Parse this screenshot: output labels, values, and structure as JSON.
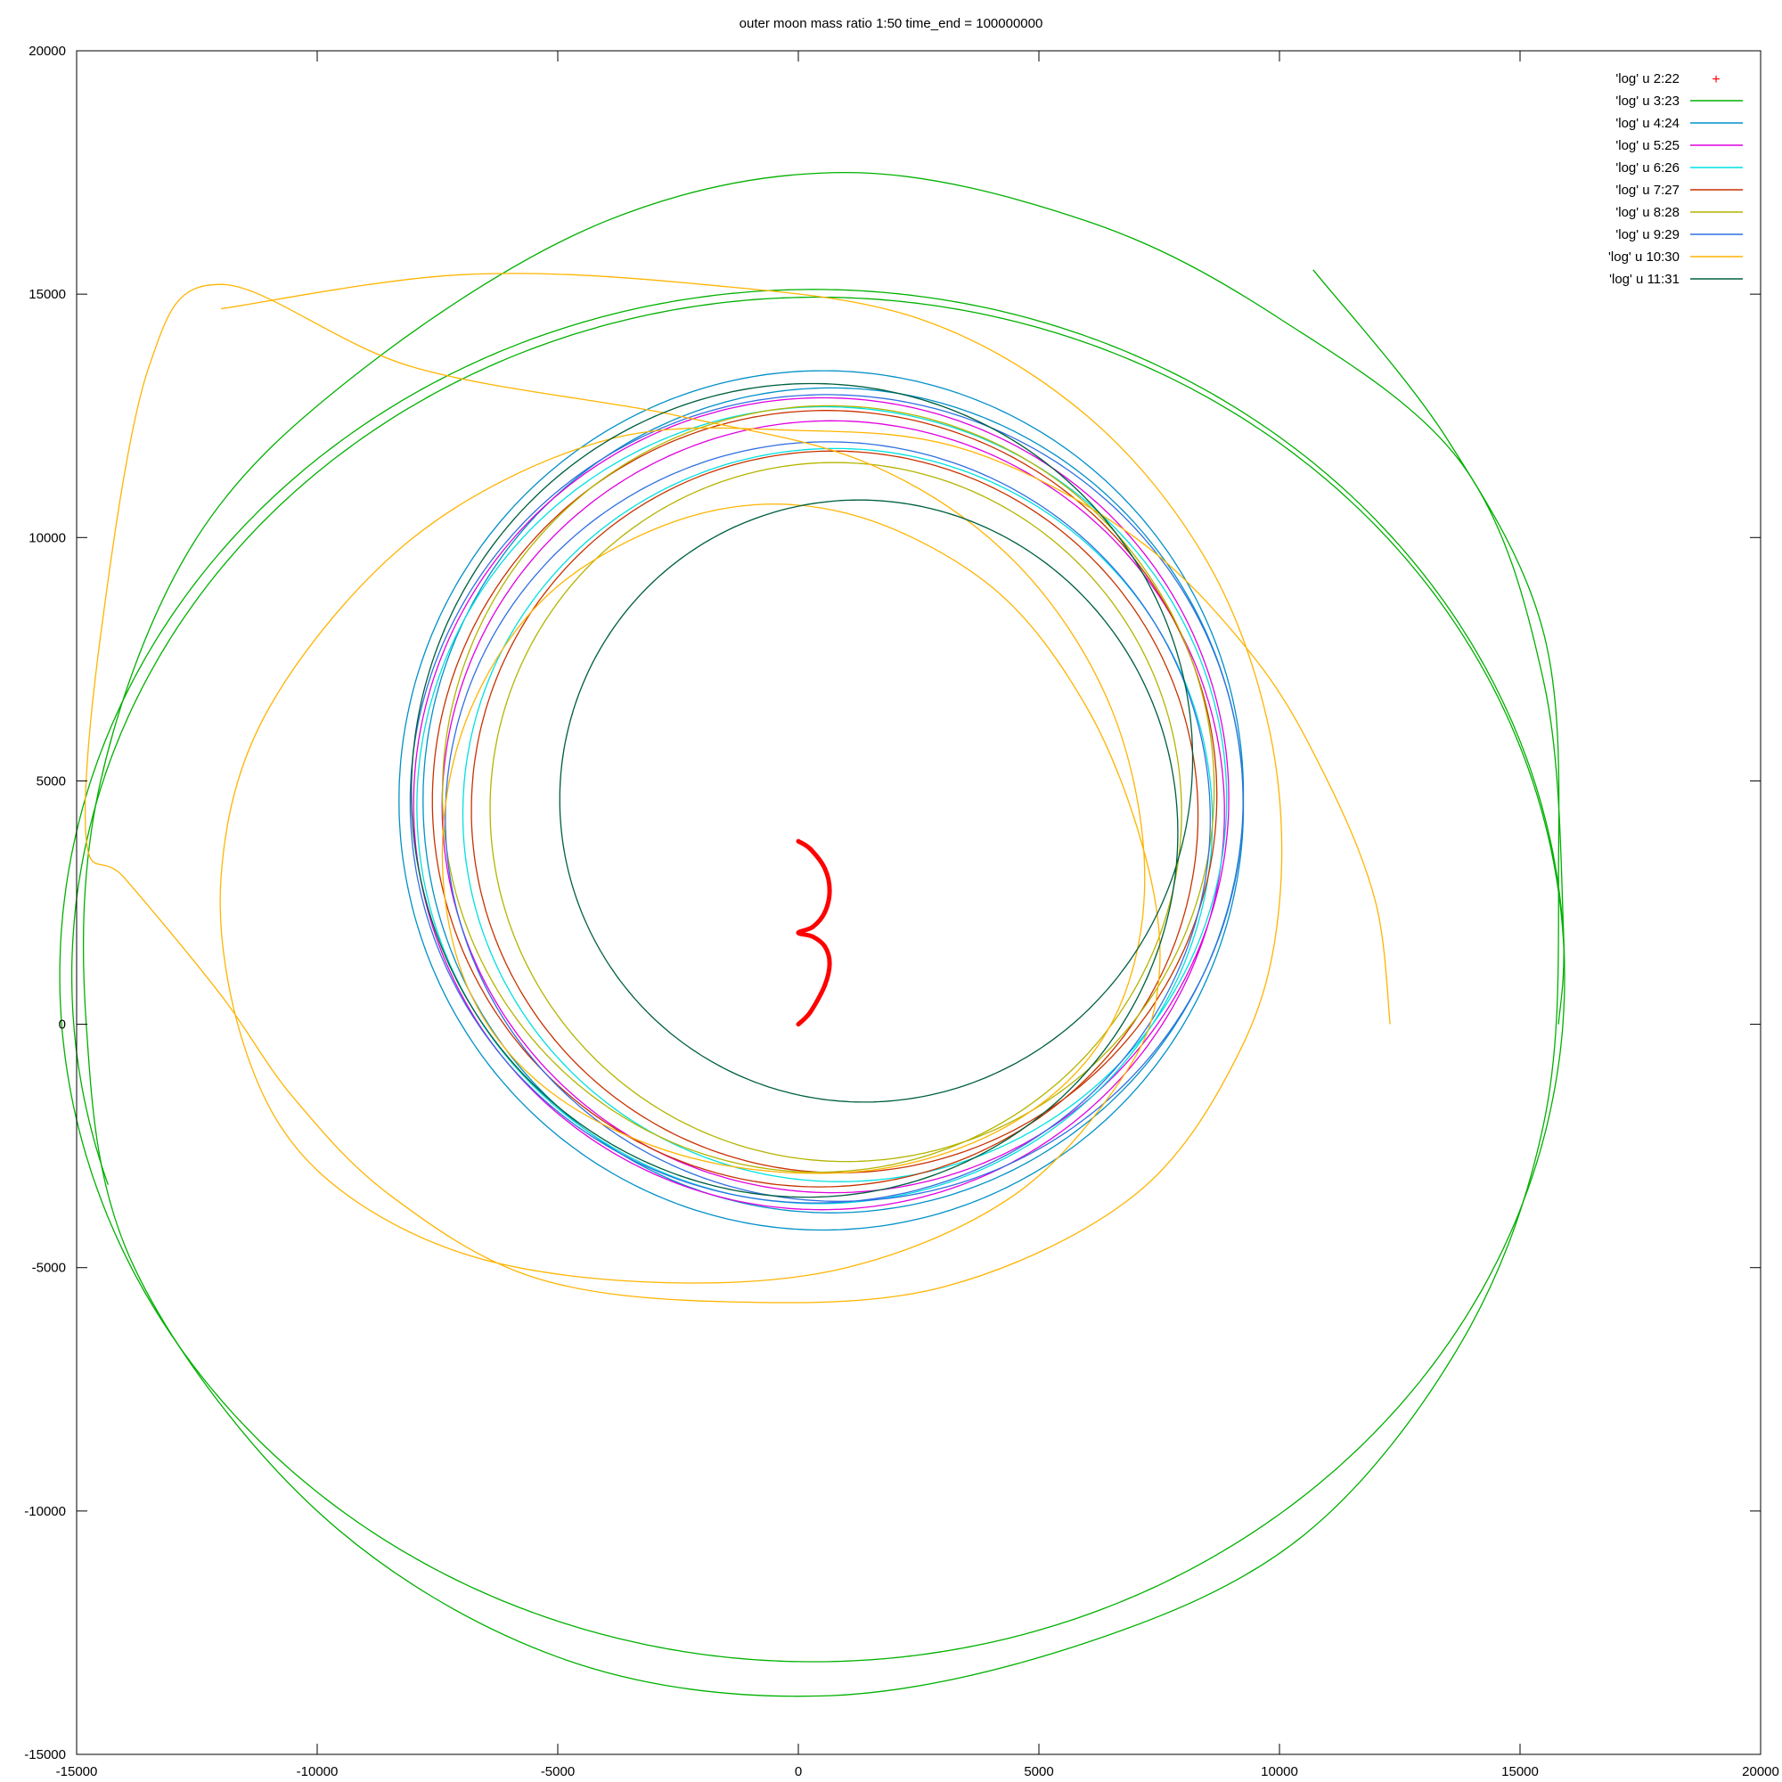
{
  "chart_data": {
    "type": "line",
    "title": "outer moon mass ratio 1:50 time_end = 100000000",
    "xlabel": "",
    "ylabel": "",
    "xlim": [
      -15000,
      20000
    ],
    "ylim": [
      -15000,
      20000
    ],
    "x_ticks": [
      "-15000",
      "-10000",
      "-5000",
      "0",
      "5000",
      "10000",
      "15000",
      "20000"
    ],
    "y_ticks": [
      "-15000",
      "-10000",
      "-5000",
      "0",
      "5000",
      "10000",
      "15000",
      "20000"
    ],
    "grid": false,
    "legend_position": "top-right",
    "series": [
      {
        "name": "'log' u 2:22",
        "color": "#ff0000",
        "style": "points",
        "points": [
          [
            0,
            0
          ],
          [
            250,
            250
          ],
          [
            550,
            800
          ],
          [
            650,
            1250
          ],
          [
            550,
            1600
          ],
          [
            300,
            1800
          ],
          [
            0,
            1880
          ],
          [
            300,
            2000
          ],
          [
            550,
            2300
          ],
          [
            650,
            2750
          ],
          [
            550,
            3200
          ],
          [
            250,
            3600
          ],
          [
            0,
            3760
          ]
        ]
      },
      {
        "name": "'log' u 3:23",
        "color": "#00b000",
        "style": "line",
        "spiral": {
          "cx": 350,
          "cy": 1000,
          "r0": 15450,
          "r1": 15700,
          "turns": 1.55,
          "phase0": 0,
          "ry_scale": 0.9
        },
        "points": [
          [
            10700,
            15500
          ],
          [
            13500,
            12000
          ],
          [
            15500,
            8000
          ],
          [
            15800,
            3000
          ],
          [
            15500,
            -2000
          ],
          [
            13800,
            -6500
          ],
          [
            10500,
            -10500
          ],
          [
            6000,
            -12700
          ],
          [
            500,
            -13800
          ],
          [
            -5000,
            -13000
          ],
          [
            -10000,
            -10000
          ],
          [
            -13800,
            -5000
          ],
          [
            -14800,
            0
          ],
          [
            -14500,
            5000
          ],
          [
            -12500,
            10000
          ],
          [
            -9000,
            13500
          ],
          [
            -4000,
            16500
          ],
          [
            1000,
            17500
          ],
          [
            6000,
            16500
          ],
          [
            10000,
            14500
          ],
          [
            13800,
            11500
          ],
          [
            15500,
            7000
          ],
          [
            15900,
            2000
          ],
          [
            15800,
            0
          ]
        ]
      },
      {
        "name": "'log' u 4:24",
        "color": "#0090c8",
        "style": "line",
        "spiral": {
          "cx": 600,
          "cy": 4600,
          "r0": 8400,
          "r1": 8900,
          "turns": 3.0,
          "phase0": 0,
          "ry_scale": 1.0
        }
      },
      {
        "name": "'log' u 5:25",
        "color": "#e000e0",
        "style": "line",
        "spiral": {
          "cx": 600,
          "cy": 4500,
          "r0": 8000,
          "r1": 8600,
          "turns": 3.0,
          "phase0": 0.3,
          "ry_scale": 0.98
        }
      },
      {
        "name": "'log' u 6:26",
        "color": "#00e0e0",
        "style": "line",
        "spiral": {
          "cx": 650,
          "cy": 4400,
          "r0": 7600,
          "r1": 8600,
          "turns": 3.0,
          "phase0": 0.6,
          "ry_scale": 0.97
        }
      },
      {
        "name": "'log' u 7:27",
        "color": "#c83200",
        "style": "line",
        "spiral": {
          "cx": 650,
          "cy": 4500,
          "r0": 7400,
          "r1": 8300,
          "turns": 3.0,
          "phase0": 0.9,
          "ry_scale": 0.98
        }
      },
      {
        "name": "'log' u 8:28",
        "color": "#b4b400",
        "style": "line",
        "spiral": {
          "cx": 700,
          "cy": 4600,
          "r0": 7000,
          "r1": 8200,
          "turns": 3.0,
          "phase0": 1.2,
          "ry_scale": 0.99
        }
      },
      {
        "name": "'log' u 9:29",
        "color": "#3070e0",
        "style": "line",
        "spiral": {
          "cx": 600,
          "cy": 4400,
          "r0": 7800,
          "r1": 8800,
          "turns": 3.0,
          "phase0": 1.5,
          "ry_scale": 0.97
        }
      },
      {
        "name": "'log' u 10:30",
        "color": "#ffb400",
        "style": "line",
        "points": [
          [
            12300,
            0
          ],
          [
            12000,
            2500
          ],
          [
            11000,
            5000
          ],
          [
            9500,
            7500
          ],
          [
            7000,
            10000
          ],
          [
            3500,
            11800
          ],
          [
            0,
            12200
          ],
          [
            -4000,
            12000
          ],
          [
            -8000,
            10000
          ],
          [
            -11000,
            6500
          ],
          [
            -12000,
            3000
          ],
          [
            -11500,
            -500
          ],
          [
            -10000,
            -3000
          ],
          [
            -7000,
            -4700
          ],
          [
            -3000,
            -5300
          ],
          [
            1000,
            -5000
          ],
          [
            4500,
            -3500
          ],
          [
            6800,
            -1000
          ],
          [
            7500,
            1000
          ],
          [
            7200,
            3500
          ],
          [
            6000,
            6500
          ],
          [
            4000,
            9000
          ],
          [
            1000,
            10500
          ],
          [
            -2000,
            10500
          ],
          [
            -5000,
            9000
          ],
          [
            -6800,
            6500
          ],
          [
            -7400,
            3500
          ],
          [
            -6800,
            600
          ],
          [
            -5000,
            -1500
          ],
          [
            -2000,
            -2800
          ],
          [
            1500,
            -3000
          ],
          [
            4500,
            -2000
          ],
          [
            6500,
            0
          ],
          [
            7200,
            3000
          ],
          [
            6500,
            6500
          ],
          [
            4500,
            9500
          ],
          [
            1500,
            11500
          ],
          [
            -2500,
            12500
          ],
          [
            -8000,
            13500
          ],
          [
            -12000,
            15200
          ],
          [
            -13500,
            13500
          ],
          [
            -14500,
            8000
          ],
          [
            -14800,
            3800
          ],
          [
            -14000,
            3000
          ],
          [
            -12000,
            600
          ],
          [
            -10500,
            -1500
          ],
          [
            -8500,
            -3500
          ],
          [
            -5500,
            -5200
          ],
          [
            -1500,
            -5700
          ],
          [
            3000,
            -5400
          ],
          [
            7000,
            -3500
          ],
          [
            9200,
            -500
          ],
          [
            10000,
            2500
          ],
          [
            9800,
            6000
          ],
          [
            8500,
            9500
          ],
          [
            6000,
            12500
          ],
          [
            2500,
            14500
          ],
          [
            -2000,
            15200
          ],
          [
            -7000,
            15400
          ],
          [
            -12000,
            14700
          ]
        ]
      },
      {
        "name": "'log' u 11:31",
        "color": "#006040",
        "style": "line",
        "spiral": {
          "cx": 750,
          "cy": 4700,
          "r0": 5700,
          "r1": 8800,
          "turns": 3.5,
          "phase0": 0.2,
          "ry_scale": 1.0
        }
      }
    ]
  }
}
